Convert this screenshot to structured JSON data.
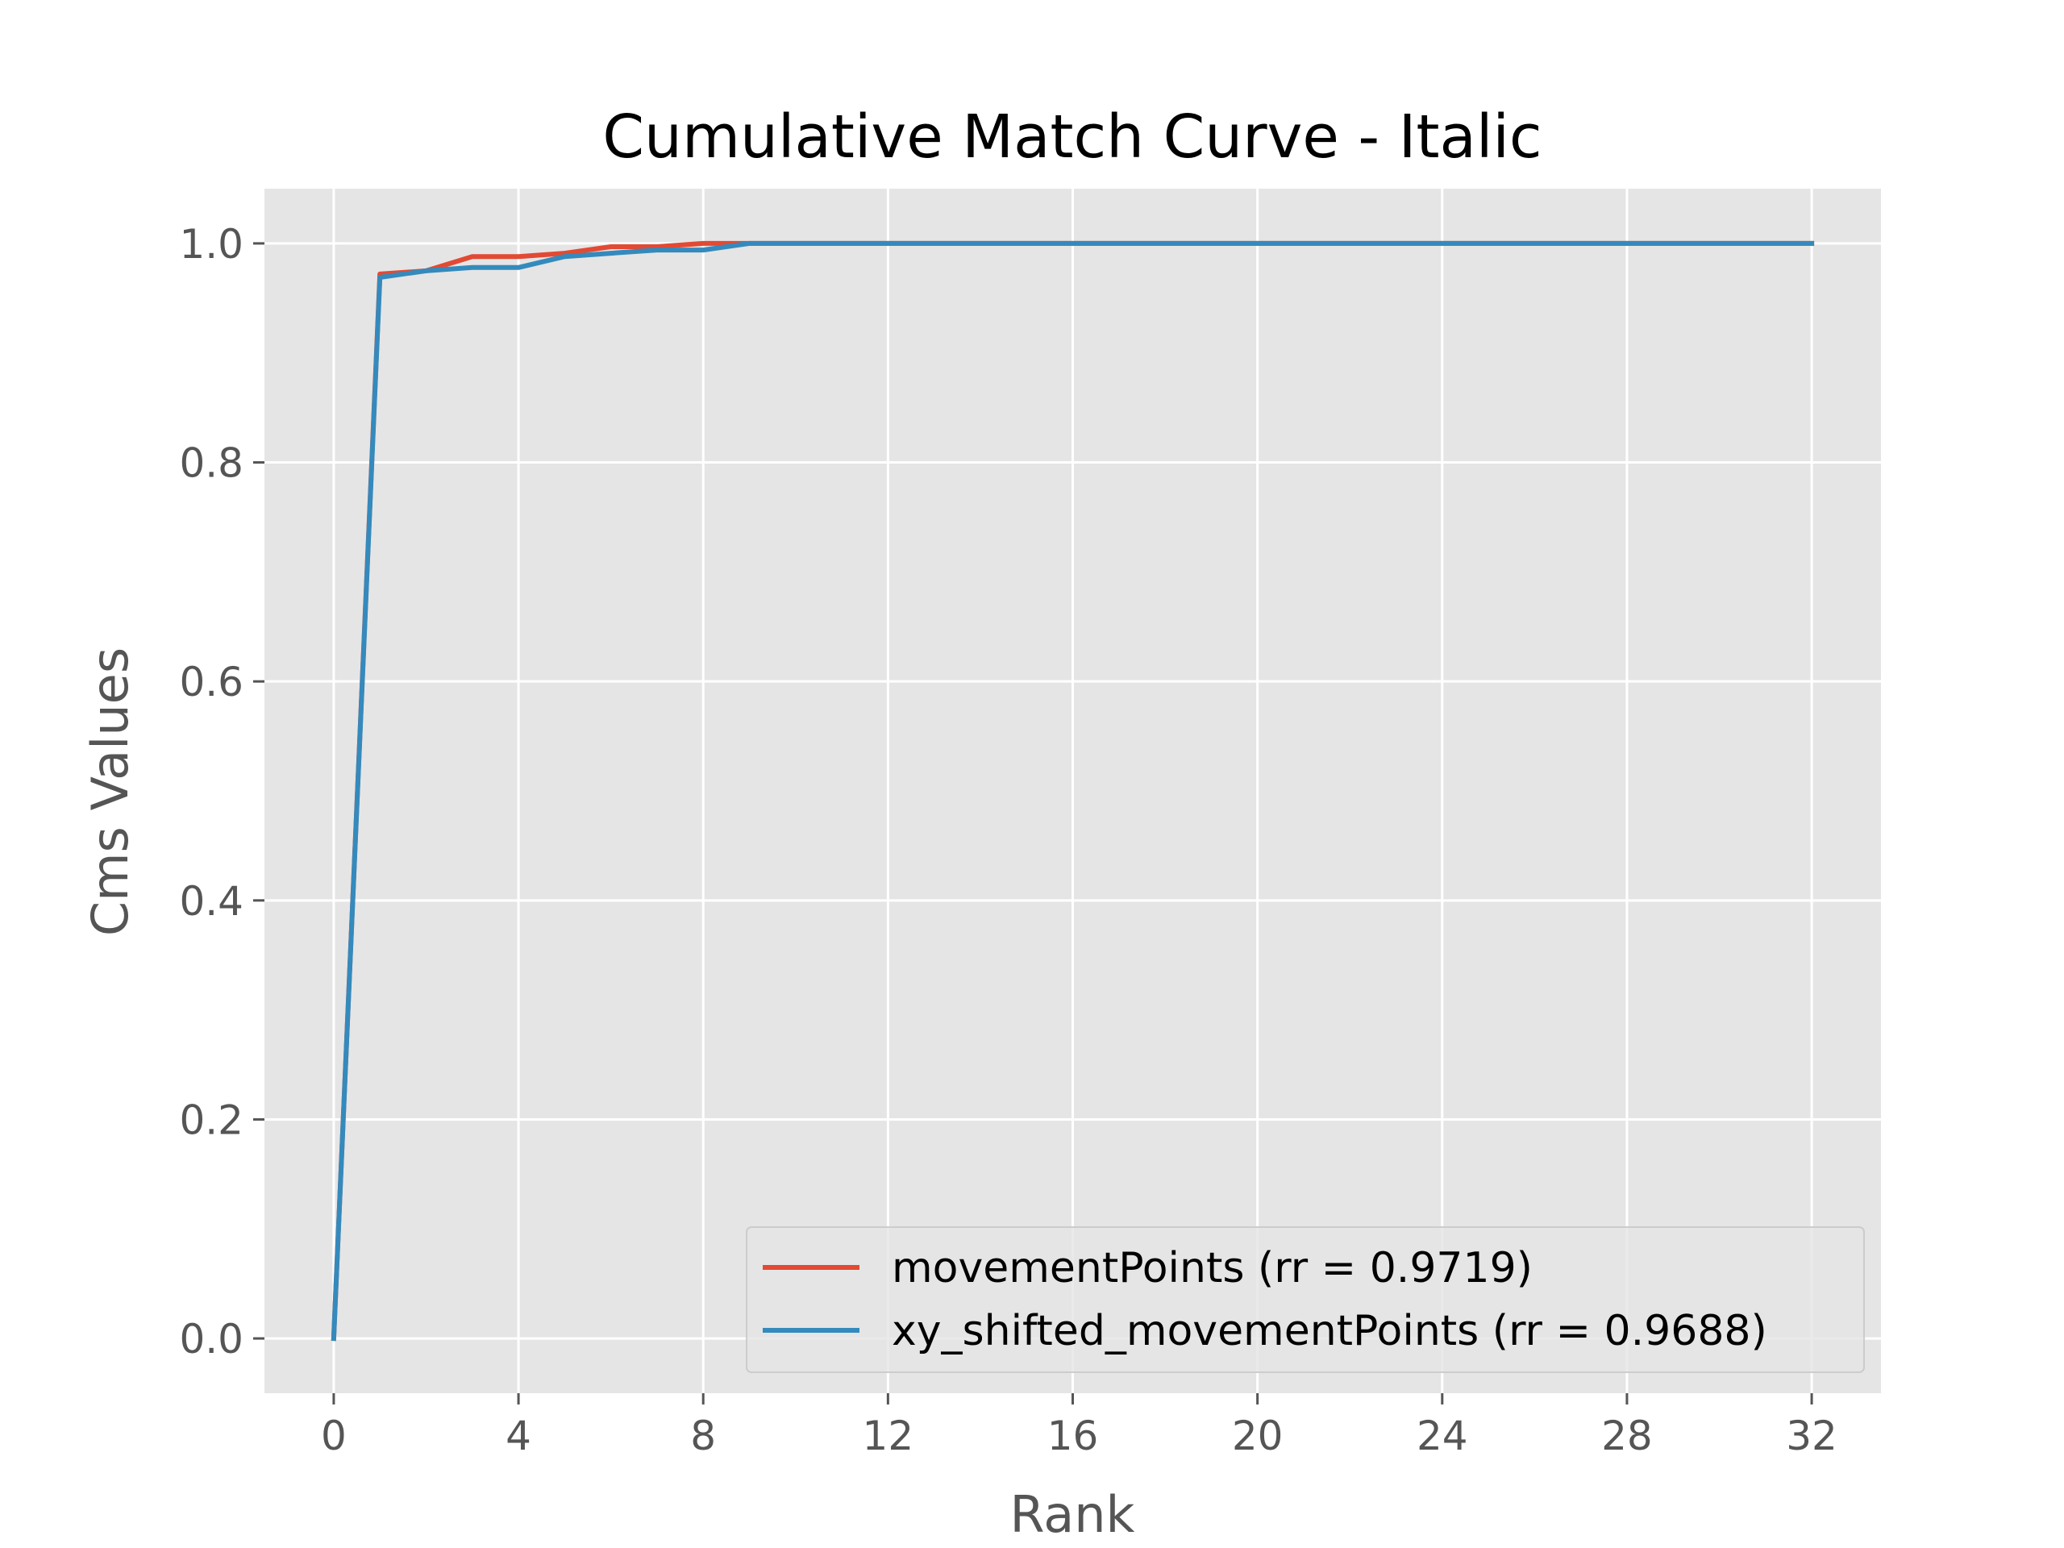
{
  "chart_data": {
    "type": "line",
    "title": "Cumulative Match Curve - Italic",
    "xlabel": "Rank",
    "ylabel": "Cms Values",
    "xlim": [
      -1.5,
      33.5
    ],
    "ylim": [
      -0.05,
      1.05
    ],
    "xticks": [
      0,
      4,
      8,
      12,
      16,
      20,
      24,
      28,
      32
    ],
    "yticks": [
      0.0,
      0.2,
      0.4,
      0.6,
      0.8,
      1.0
    ],
    "ytick_labels": [
      "0.0",
      "0.2",
      "0.4",
      "0.6",
      "0.8",
      "1.0"
    ],
    "grid": true,
    "legend_position": "lower-right",
    "background_color": "#E5E5E5",
    "grid_color": "#FFFFFF",
    "series": [
      {
        "name": "movementPoints (rr = 0.9719)",
        "color": "#E24A33",
        "x": [
          0,
          1,
          2,
          3,
          4,
          5,
          6,
          7,
          8,
          9,
          10,
          11,
          12,
          13,
          14,
          15,
          16,
          17,
          18,
          19,
          20,
          21,
          22,
          23,
          24,
          25,
          26,
          27,
          28,
          29,
          30,
          31,
          32
        ],
        "y": [
          0.0,
          0.972,
          0.975,
          0.988,
          0.988,
          0.991,
          0.997,
          0.997,
          1.0,
          1.0,
          1.0,
          1.0,
          1.0,
          1.0,
          1.0,
          1.0,
          1.0,
          1.0,
          1.0,
          1.0,
          1.0,
          1.0,
          1.0,
          1.0,
          1.0,
          1.0,
          1.0,
          1.0,
          1.0,
          1.0,
          1.0,
          1.0,
          1.0
        ]
      },
      {
        "name": "xy_shifted_movementPoints (rr = 0.9688)",
        "color": "#348ABD",
        "x": [
          0,
          1,
          2,
          3,
          4,
          5,
          6,
          7,
          8,
          9,
          10,
          11,
          12,
          13,
          14,
          15,
          16,
          17,
          18,
          19,
          20,
          21,
          22,
          23,
          24,
          25,
          26,
          27,
          28,
          29,
          30,
          31,
          32
        ],
        "y": [
          0.0,
          0.969,
          0.975,
          0.978,
          0.978,
          0.988,
          0.991,
          0.994,
          0.994,
          1.0,
          1.0,
          1.0,
          1.0,
          1.0,
          1.0,
          1.0,
          1.0,
          1.0,
          1.0,
          1.0,
          1.0,
          1.0,
          1.0,
          1.0,
          1.0,
          1.0,
          1.0,
          1.0,
          1.0,
          1.0,
          1.0,
          1.0,
          1.0
        ]
      }
    ]
  }
}
